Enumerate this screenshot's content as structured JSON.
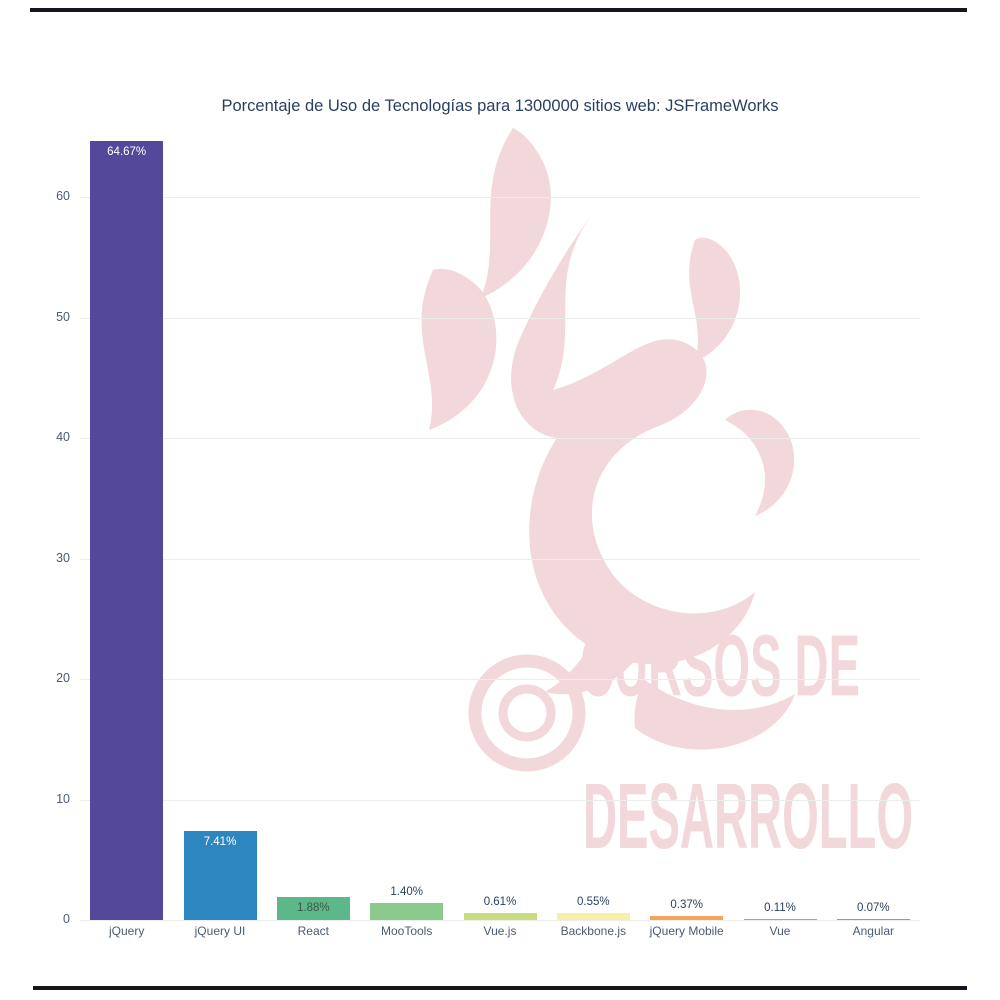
{
  "decor": {
    "top_line_color": "#15151f",
    "bottom_line_color": "#15151f"
  },
  "watermark": {
    "text_line1": "CURSOS DE",
    "text_line2": "DESARROLLO",
    "color": "#f2d8da"
  },
  "chart_data": {
    "type": "bar",
    "title": "Porcentaje de Uso de Tecnologías para 1300000 sitios web: JSFrameWorks",
    "categories": [
      "jQuery",
      "jQuery UI",
      "React",
      "MooTools",
      "Vue.js",
      "Backbone.js",
      "jQuery Mobile",
      "Vue",
      "Angular"
    ],
    "values": [
      64.67,
      7.41,
      1.88,
      1.4,
      0.61,
      0.55,
      0.37,
      0.11,
      0.07
    ],
    "labels": [
      "64.67%",
      "7.41%",
      "1.88%",
      "1.40%",
      "0.61%",
      "0.55%",
      "0.37%",
      "0.11%",
      "0.07%"
    ],
    "label_positions": [
      "inside",
      "inside",
      "inside",
      "outside",
      "outside",
      "outside",
      "outside",
      "outside",
      "outside"
    ],
    "label_colors": [
      "#ffffff",
      "#ffffff",
      "#3d564a",
      "#2a3f5f",
      "#2a3f5f",
      "#2a3f5f",
      "#2a3f5f",
      "#2a3f5f",
      "#2a3f5f"
    ],
    "bar_colors": [
      "#54489a",
      "#2e86c1",
      "#5cb888",
      "#8cc98c",
      "#c9db7f",
      "#f5f0a6",
      "#f5a45e",
      "#f28d60",
      "#f4765c"
    ],
    "xlabel": "",
    "ylabel": "",
    "yticks": [
      0,
      10,
      20,
      30,
      40,
      50,
      60
    ],
    "ylim": [
      0,
      65
    ],
    "grid": true,
    "legend": false
  }
}
